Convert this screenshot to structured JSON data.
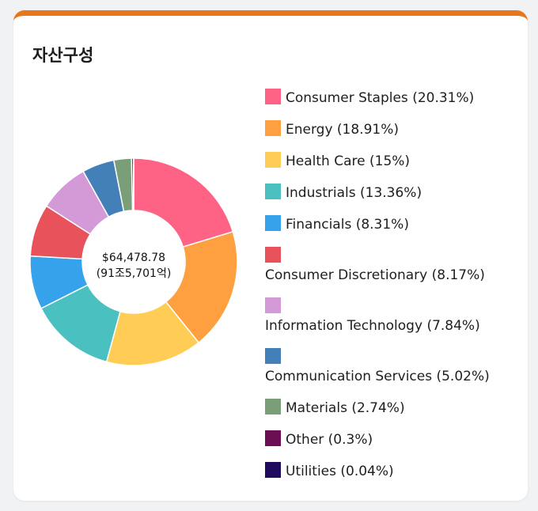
{
  "card": {
    "title": "자산구성",
    "accent_color": "#e8761b"
  },
  "center": {
    "value": "$64,478.78",
    "sub_value": "(91조5,701억)"
  },
  "chart_data": {
    "type": "pie",
    "variant": "donut",
    "title": "",
    "legend_position": "right",
    "categories": [
      "Consumer Staples",
      "Energy",
      "Health Care",
      "Industrials",
      "Financials",
      "Consumer Discretionary",
      "Information Technology",
      "Communication Services",
      "Materials",
      "Other",
      "Utilities"
    ],
    "values": [
      20.31,
      18.91,
      15,
      13.36,
      8.31,
      8.17,
      7.84,
      5.02,
      2.74,
      0.3,
      0.04
    ],
    "legend_labels": [
      "Consumer Staples (20.31%)",
      "Energy (18.91%)",
      "Health Care (15%)",
      "Industrials (13.36%)",
      "Financials (8.31%)",
      "Consumer Discretionary (8.17%)",
      "Information Technology (7.84%)",
      "Communication Services (5.02%)",
      "Materials (2.74%)",
      "Other (0.3%)",
      "Utilities (0.04%)"
    ],
    "colors": [
      "#fe6385",
      "#fe9f40",
      "#ffcd56",
      "#4ac0c0",
      "#36a2eb",
      "#e8535b",
      "#d49ad7",
      "#4380b8",
      "#7a9e78",
      "#6c0e52",
      "#200a5e"
    ]
  }
}
